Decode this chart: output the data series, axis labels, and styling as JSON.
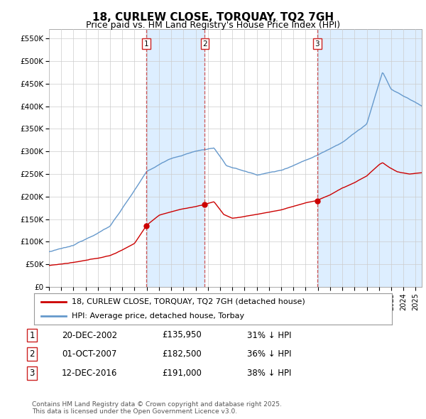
{
  "title": "18, CURLEW CLOSE, TORQUAY, TQ2 7GH",
  "subtitle": "Price paid vs. HM Land Registry's House Price Index (HPI)",
  "ylabel_ticks": [
    "£0",
    "£50K",
    "£100K",
    "£150K",
    "£200K",
    "£250K",
    "£300K",
    "£350K",
    "£400K",
    "£450K",
    "£500K",
    "£550K"
  ],
  "ytick_vals": [
    0,
    50000,
    100000,
    150000,
    200000,
    250000,
    300000,
    350000,
    400000,
    450000,
    500000,
    550000
  ],
  "ylim": [
    0,
    570000
  ],
  "xlim_start": 1995,
  "xlim_end": 2025.5,
  "transaction_dates_num": [
    2002.97,
    2007.75,
    2016.95
  ],
  "transaction_prices": [
    135950,
    182500,
    191000
  ],
  "transaction_labels": [
    "1",
    "2",
    "3"
  ],
  "legend_line1": "18, CURLEW CLOSE, TORQUAY, TQ2 7GH (detached house)",
  "legend_line2": "HPI: Average price, detached house, Torbay",
  "table_rows": [
    [
      "1",
      "20-DEC-2002",
      "£135,950",
      "31% ↓ HPI"
    ],
    [
      "2",
      "01-OCT-2007",
      "£182,500",
      "36% ↓ HPI"
    ],
    [
      "3",
      "12-DEC-2016",
      "£191,000",
      "38% ↓ HPI"
    ]
  ],
  "footer": "Contains HM Land Registry data © Crown copyright and database right 2025.\nThis data is licensed under the Open Government Licence v3.0.",
  "hpi_color": "#6699cc",
  "sold_color": "#cc0000",
  "vline_color": "#cc4444",
  "shade_color": "#ddeeff",
  "background_color": "#ffffff",
  "grid_color": "#cccccc",
  "title_fontsize": 11,
  "subtitle_fontsize": 9,
  "tick_fontsize": 7.5,
  "legend_fontsize": 8,
  "table_fontsize": 8.5,
  "footer_fontsize": 6.5
}
